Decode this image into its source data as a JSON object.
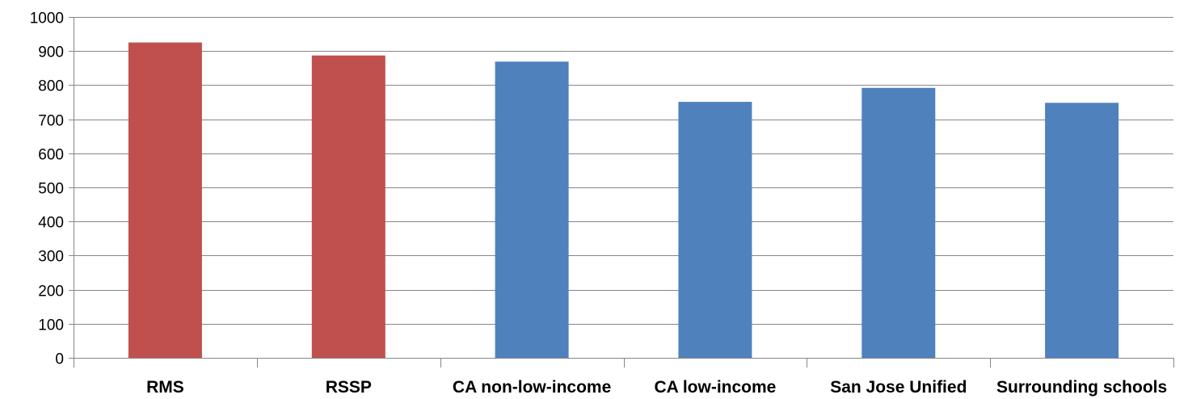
{
  "chart_data": {
    "type": "bar",
    "categories": [
      "RMS",
      "RSSP",
      "CA non-low-income",
      "CA low-income",
      "San Jose Unified",
      "Surrounding schools"
    ],
    "values": [
      925,
      887,
      869,
      751,
      792,
      748
    ],
    "bar_colors": [
      "#C0504D",
      "#C0504D",
      "#4F81BD",
      "#4F81BD",
      "#4F81BD",
      "#4F81BD"
    ],
    "yticks": [
      "0",
      "100",
      "200",
      "300",
      "400",
      "500",
      "600",
      "700",
      "800",
      "900",
      "1000"
    ],
    "ylim": [
      0,
      1000
    ],
    "grid": true,
    "legend": "none"
  }
}
